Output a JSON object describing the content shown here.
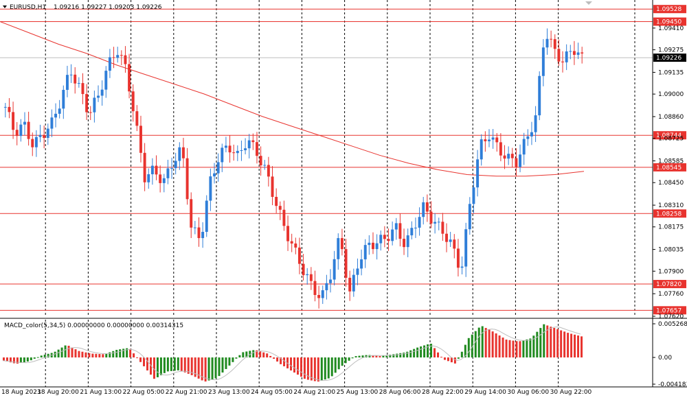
{
  "header": {
    "symbol": "EURUSD,H1",
    "ohlc": "1.09216 1.09227 1.09203 1.09226",
    "indicator": "MACD_color(5,34,5) 0.00000000 0.00000000 0.00314315"
  },
  "colors": {
    "bull": "#2f7ed8",
    "bear": "#e8332e",
    "level": "#e8332e",
    "ma": "#e8332e",
    "grid": "#000000",
    "price_tag": "#000000",
    "macd_pos": "#1f8a1f",
    "macd_neg": "#e8332e",
    "signal": "#bdbdbd"
  },
  "chart_data": {
    "type": "candlestick",
    "price_axis": {
      "range": [
        1.0762,
        1.0958
      ],
      "ticks": [
        "1.09410",
        "1.09275",
        "1.09135",
        "1.09000",
        "1.08860",
        "1.08725",
        "1.08585",
        "1.08450",
        "1.08310",
        "1.08175",
        "1.08035",
        "1.07900",
        "1.07760",
        "1.07620"
      ]
    },
    "levels": [
      "1.09528",
      "1.09450",
      "1.08744",
      "1.08545",
      "1.08258",
      "1.07820",
      "1.07657"
    ],
    "current_price": "1.09226",
    "time_labels": [
      "18 Aug 2023",
      "18 Aug 20:00",
      "21 Aug 13:00",
      "22 Aug 05:00",
      "22 Aug 21:00",
      "23 Aug 13:00",
      "24 Aug 05:00",
      "24 Aug 21:00",
      "25 Aug 13:00",
      "28 Aug 06:00",
      "28 Aug 22:00",
      "29 Aug 14:00",
      "30 Aug 06:00",
      "30 Aug 22:00"
    ],
    "close_path": [
      1.0892,
      1.0876,
      1.0881,
      1.0868,
      1.0875,
      1.0882,
      1.0897,
      1.0915,
      1.0903,
      1.0888,
      1.0899,
      1.0917,
      1.0928,
      1.0915,
      1.0882,
      1.0848,
      1.0853,
      1.0845,
      1.0858,
      1.0866,
      1.0816,
      1.081,
      1.0845,
      1.0862,
      1.0868,
      1.0861,
      1.0872,
      1.0864,
      1.0852,
      1.0834,
      1.0817,
      1.0804,
      1.0791,
      1.078,
      1.0773,
      1.0789,
      1.0812,
      1.0775,
      1.0797,
      1.0806,
      1.0808,
      1.0811,
      1.0817,
      1.0806,
      1.0819,
      1.083,
      1.0821,
      1.0815,
      1.0806,
      1.079,
      1.0834,
      1.0867,
      1.0875,
      1.0866,
      1.086,
      1.0858,
      1.0872,
      1.0885,
      1.094,
      1.0927,
      1.092,
      1.0929,
      1.0922
    ],
    "ma_path": [
      1.0945,
      1.0938,
      1.0931,
      1.0925,
      1.0918,
      1.0912,
      1.0906,
      1.09,
      1.0893,
      1.0886,
      1.088,
      1.0874,
      1.0868,
      1.0862,
      1.0857,
      1.0853,
      1.085,
      1.0849,
      1.0849,
      1.085,
      1.0852
    ],
    "macd_axis": {
      "ticks": [
        "0.0052689",
        "0.00",
        "-0.0041835"
      ],
      "range": [
        -0.0041835,
        0.0052689
      ]
    },
    "macd_path": [
      -0.0005,
      -0.001,
      -0.0006,
      0.0003,
      0.0008,
      0.002,
      0.001,
      0.0006,
      0.0005,
      0.0012,
      0.0015,
      -0.001,
      -0.0034,
      -0.0022,
      -0.002,
      -0.0028,
      -0.0038,
      -0.0032,
      -0.0012,
      0.0008,
      0.0012,
      0.0006,
      -0.001,
      -0.0022,
      -0.0034,
      -0.0038,
      -0.0032,
      -0.0012,
      0.0002,
      0.0004,
      0.0002,
      0.0005,
      0.0008,
      0.0016,
      0.0022,
      -0.0003,
      -0.001,
      0.003,
      0.005,
      0.004,
      0.0028,
      0.0025,
      0.003,
      0.0052,
      0.0045,
      0.0038,
      0.0033
    ]
  }
}
